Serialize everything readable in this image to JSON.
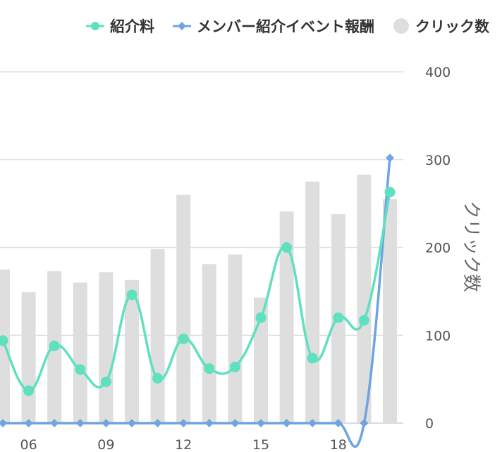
{
  "chart_data": {
    "type": "bar",
    "legend": [
      {
        "name": "紹介料",
        "color": "#5fe0bf",
        "marker": "circle"
      },
      {
        "name": "メンバー紹介イベント報酬",
        "color": "#6fa4e0",
        "marker": "diamond"
      },
      {
        "name": "クリック数",
        "color": "#dedede",
        "marker": "circle"
      }
    ],
    "x_tick_labels": [
      "06",
      "09",
      "12",
      "15",
      "18"
    ],
    "x_tick_positions": [
      1,
      4,
      7,
      10,
      13
    ],
    "y_ticks": [
      0,
      100,
      200,
      300,
      400
    ],
    "ylabel": "クリック数",
    "ylim": [
      0,
      400
    ],
    "grid": true,
    "legend_position": "top-right",
    "series": [
      {
        "name": "クリック数",
        "type": "bar",
        "color": "#dedede",
        "values": [
          175,
          149,
          173,
          160,
          172,
          163,
          198,
          260,
          181,
          192,
          143,
          241,
          275,
          238,
          283,
          255
        ]
      },
      {
        "name": "紹介料",
        "type": "line",
        "color": "#5fe0bf",
        "values": [
          94,
          37,
          88,
          61,
          47,
          146,
          51,
          96,
          62,
          64,
          120,
          200,
          74,
          120,
          117,
          263
        ]
      },
      {
        "name": "メンバー紹介イベント報酬",
        "type": "line",
        "color": "#6fa4e0",
        "values": [
          0,
          0,
          0,
          0,
          0,
          0,
          0,
          0,
          0,
          0,
          0,
          0,
          0,
          0,
          0,
          302
        ]
      }
    ]
  }
}
